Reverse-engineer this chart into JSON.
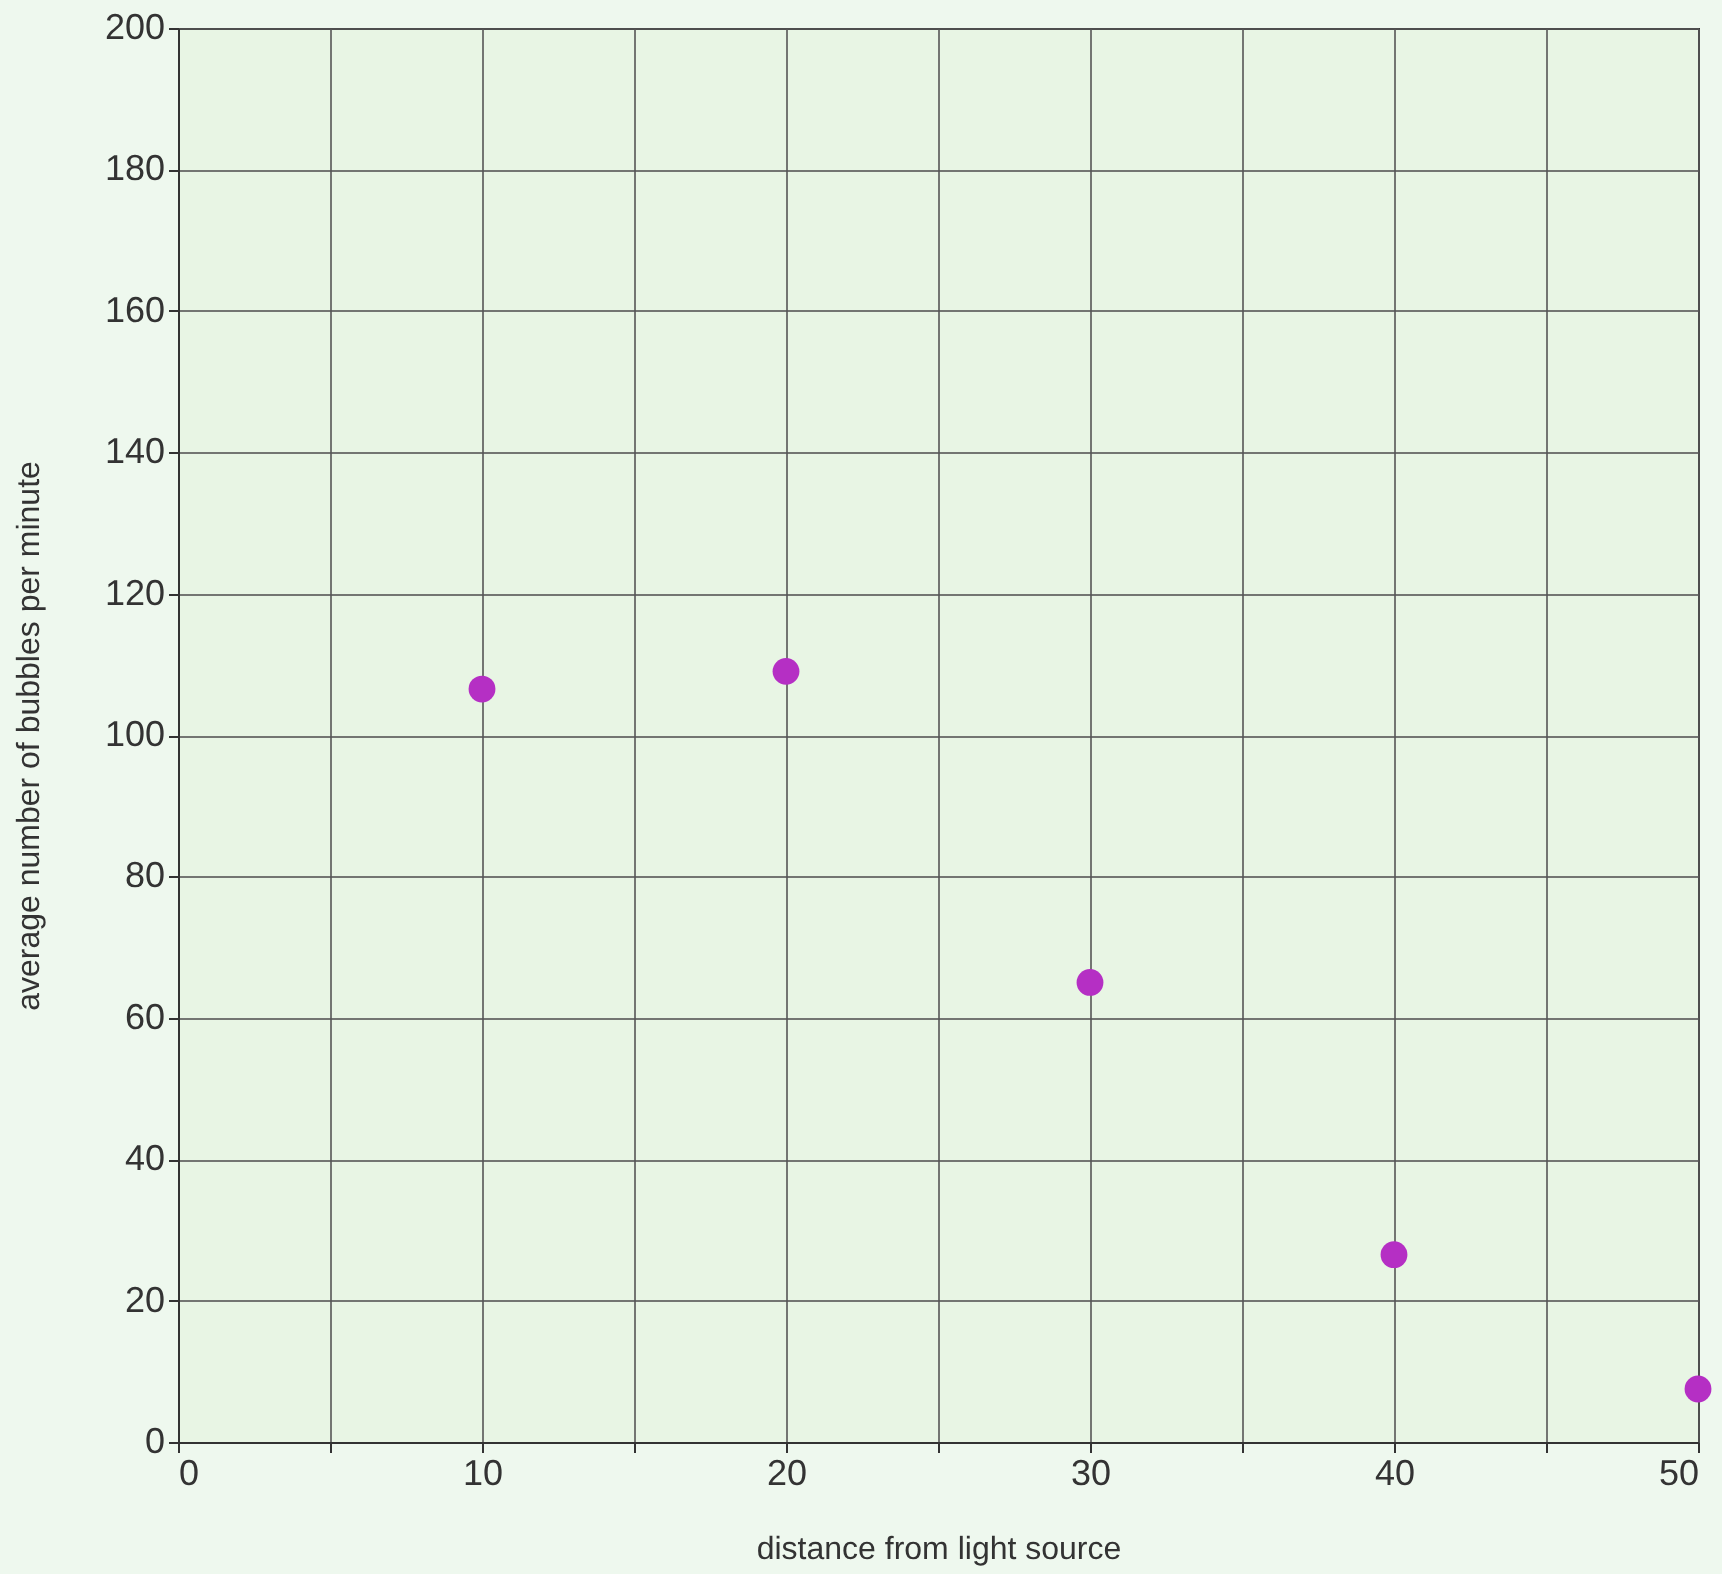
{
  "chart_data": {
    "type": "scatter",
    "xlabel": "distance from light source",
    "ylabel": "average number of bubbles per minute",
    "x": [
      10,
      20,
      30,
      40,
      50
    ],
    "series": [
      {
        "color": "#b52fc4",
        "values": [
          106.5,
          109,
          65,
          26.5,
          7.5
        ]
      }
    ],
    "xlim": [
      0,
      50
    ],
    "ylim": [
      0,
      200
    ],
    "xticks": [
      0,
      {
        "value": 5,
        "label": null
      },
      10,
      {
        "value": 15,
        "label": null
      },
      20,
      {
        "value": 25,
        "label": null
      },
      30,
      {
        "value": 35,
        "label": null
      },
      40,
      {
        "value": 45,
        "label": null
      },
      50
    ],
    "yticks": [
      0,
      20,
      40,
      60,
      80,
      100,
      120,
      140,
      160,
      180,
      200
    ],
    "grid": true,
    "marker": "circle"
  }
}
